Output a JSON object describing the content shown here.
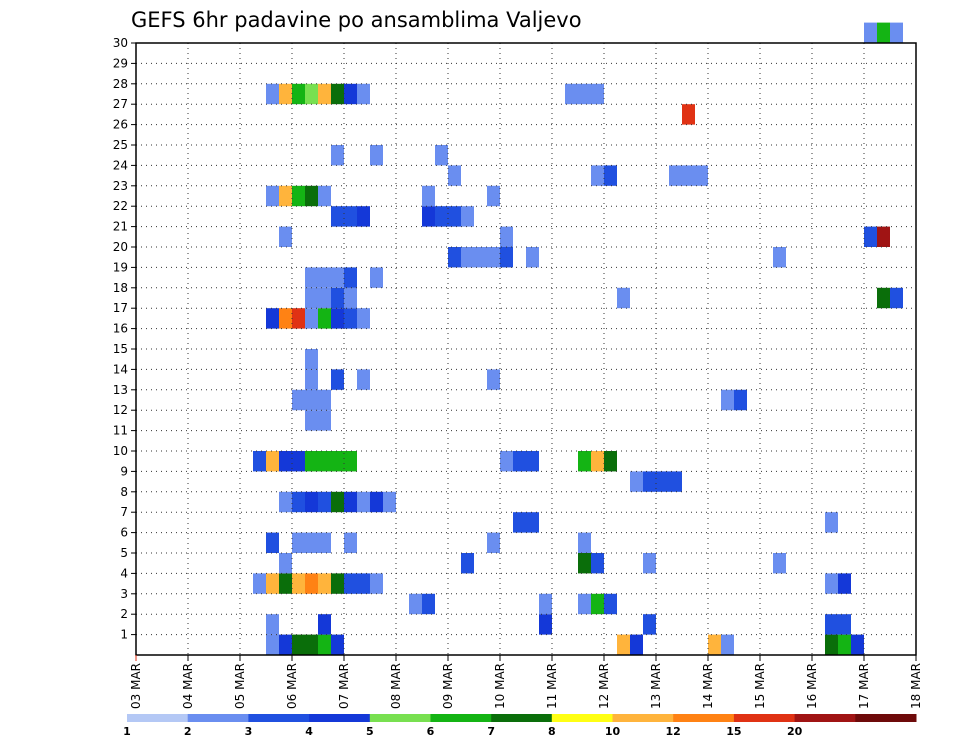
{
  "chart_data": {
    "type": "heatmap",
    "title": "GEFS 6hr padavine po ansamblima Valjevo",
    "xlabel": "",
    "ylabel": "",
    "x_ticks": [
      "03 MAR",
      "04 MAR",
      "05 MAR",
      "06 MAR",
      "07 MAR",
      "08 MAR",
      "09 MAR",
      "10 MAR",
      "11 MAR",
      "12 MAR",
      "13 MAR",
      "14 MAR",
      "15 MAR",
      "16 MAR",
      "17 MAR",
      "18 MAR"
    ],
    "y_ticks": [
      "1",
      "2",
      "3",
      "4",
      "5",
      "6",
      "7",
      "8",
      "9",
      "10",
      "11",
      "12",
      "13",
      "14",
      "15",
      "16",
      "17",
      "18",
      "19",
      "20",
      "21",
      "22",
      "23",
      "24",
      "25",
      "26",
      "27",
      "28",
      "29",
      "30"
    ],
    "xlim": [
      0,
      60
    ],
    "ylim": [
      0,
      30
    ],
    "grid": true,
    "colorbar": {
      "labels": [
        "1",
        "2",
        "3",
        "4",
        "5",
        "6",
        "7",
        "8",
        "10",
        "12",
        "15",
        "20"
      ],
      "colors": [
        "#b4c8f5",
        "#6a8ef0",
        "#2050e0",
        "#1438d8",
        "#78e050",
        "#14b414",
        "#0a6e0a",
        "#ffff14",
        "#ffb43c",
        "#ff8214",
        "#e03214",
        "#a01414",
        "#6e0a0a"
      ]
    },
    "cells": [
      {
        "member": 0,
        "t": [
          [
            10,
            10,
            1
          ],
          [
            11,
            11,
            3
          ],
          [
            12,
            13,
            6
          ],
          [
            14,
            14,
            5
          ],
          [
            15,
            15,
            3
          ],
          [
            37,
            37,
            8
          ],
          [
            38,
            38,
            3
          ],
          [
            44,
            44,
            8
          ],
          [
            45,
            45,
            1
          ],
          [
            53,
            53,
            6
          ],
          [
            54,
            54,
            5
          ],
          [
            55,
            55,
            3
          ]
        ]
      },
      {
        "member": 1,
        "t": [
          [
            10,
            10,
            1
          ],
          [
            14,
            14,
            3
          ],
          [
            31,
            31,
            3
          ],
          [
            39,
            39,
            2
          ],
          [
            53,
            54,
            2
          ]
        ]
      },
      {
        "member": 2,
        "t": [
          [
            21,
            21,
            1
          ],
          [
            22,
            22,
            2
          ],
          [
            31,
            31,
            1
          ],
          [
            34,
            34,
            1
          ],
          [
            35,
            35,
            5
          ],
          [
            36,
            36,
            2
          ]
        ]
      },
      {
        "member": 3,
        "t": [
          [
            9,
            9,
            1
          ],
          [
            10,
            10,
            8
          ],
          [
            11,
            11,
            6
          ],
          [
            12,
            12,
            8
          ],
          [
            13,
            13,
            9
          ],
          [
            14,
            14,
            8
          ],
          [
            15,
            15,
            6
          ],
          [
            16,
            17,
            2
          ],
          [
            18,
            18,
            1
          ],
          [
            53,
            53,
            1
          ],
          [
            54,
            54,
            3
          ]
        ]
      },
      {
        "member": 4,
        "t": [
          [
            11,
            11,
            1
          ],
          [
            25,
            25,
            2
          ],
          [
            34,
            34,
            6
          ],
          [
            35,
            35,
            2
          ],
          [
            39,
            39,
            1
          ],
          [
            49,
            49,
            1
          ]
        ]
      },
      {
        "member": 5,
        "t": [
          [
            10,
            10,
            2
          ],
          [
            12,
            14,
            1
          ],
          [
            16,
            16,
            1
          ],
          [
            27,
            27,
            1
          ],
          [
            34,
            34,
            1
          ]
        ]
      },
      {
        "member": 6,
        "t": [
          [
            29,
            30,
            2
          ],
          [
            53,
            53,
            1
          ]
        ]
      },
      {
        "member": 7,
        "t": [
          [
            11,
            11,
            1
          ],
          [
            12,
            12,
            2
          ],
          [
            13,
            13,
            3
          ],
          [
            14,
            14,
            2
          ],
          [
            15,
            15,
            6
          ],
          [
            16,
            16,
            3
          ],
          [
            17,
            17,
            1
          ],
          [
            18,
            18,
            3
          ],
          [
            19,
            19,
            1
          ]
        ]
      },
      {
        "member": 8,
        "t": [
          [
            38,
            38,
            1
          ],
          [
            39,
            41,
            2
          ]
        ]
      },
      {
        "member": 9,
        "t": [
          [
            9,
            9,
            2
          ],
          [
            10,
            10,
            8
          ],
          [
            11,
            12,
            3
          ],
          [
            13,
            16,
            5
          ],
          [
            28,
            28,
            1
          ],
          [
            29,
            30,
            2
          ],
          [
            34,
            34,
            5
          ],
          [
            35,
            35,
            8
          ],
          [
            36,
            36,
            6
          ]
        ]
      },
      {
        "member": 11,
        "t": [
          [
            13,
            14,
            1
          ]
        ]
      },
      {
        "member": 12,
        "t": [
          [
            12,
            14,
            1
          ],
          [
            45,
            45,
            1
          ],
          [
            46,
            46,
            2
          ]
        ]
      },
      {
        "member": 13,
        "t": [
          [
            13,
            13,
            1
          ],
          [
            15,
            15,
            2
          ],
          [
            17,
            17,
            1
          ],
          [
            27,
            27,
            1
          ]
        ]
      },
      {
        "member": 14,
        "t": [
          [
            13,
            13,
            1
          ]
        ]
      },
      {
        "member": 16,
        "t": [
          [
            10,
            10,
            3
          ],
          [
            11,
            11,
            9
          ],
          [
            12,
            12,
            10
          ],
          [
            13,
            13,
            1
          ],
          [
            14,
            14,
            5
          ],
          [
            15,
            15,
            3
          ],
          [
            16,
            16,
            2
          ],
          [
            17,
            17,
            1
          ]
        ]
      },
      {
        "member": 17,
        "t": [
          [
            13,
            14,
            1
          ],
          [
            15,
            15,
            2
          ],
          [
            16,
            16,
            1
          ],
          [
            37,
            37,
            1
          ],
          [
            57,
            57,
            6
          ],
          [
            58,
            58,
            2
          ]
        ]
      },
      {
        "member": 18,
        "t": [
          [
            13,
            15,
            1
          ],
          [
            16,
            16,
            2
          ],
          [
            18,
            18,
            1
          ]
        ]
      },
      {
        "member": 19,
        "t": [
          [
            24,
            24,
            2
          ],
          [
            25,
            27,
            1
          ],
          [
            28,
            28,
            2
          ],
          [
            30,
            30,
            1
          ],
          [
            49,
            49,
            1
          ]
        ]
      },
      {
        "member": 20,
        "t": [
          [
            11,
            11,
            1
          ],
          [
            28,
            28,
            1
          ],
          [
            56,
            56,
            2
          ],
          [
            57,
            57,
            11
          ]
        ]
      },
      {
        "member": 21,
        "t": [
          [
            15,
            16,
            2
          ],
          [
            17,
            17,
            3
          ],
          [
            22,
            22,
            3
          ],
          [
            23,
            24,
            2
          ],
          [
            25,
            25,
            1
          ]
        ]
      },
      {
        "member": 22,
        "t": [
          [
            10,
            10,
            1
          ],
          [
            11,
            11,
            8
          ],
          [
            12,
            12,
            5
          ],
          [
            13,
            13,
            6
          ],
          [
            14,
            14,
            1
          ],
          [
            22,
            22,
            1
          ],
          [
            27,
            27,
            1
          ]
        ]
      },
      {
        "member": 23,
        "t": [
          [
            24,
            24,
            1
          ],
          [
            35,
            35,
            1
          ],
          [
            36,
            36,
            2
          ],
          [
            41,
            43,
            1
          ]
        ]
      },
      {
        "member": 24,
        "t": [
          [
            15,
            15,
            1
          ],
          [
            18,
            18,
            1
          ],
          [
            23,
            23,
            1
          ]
        ]
      },
      {
        "member": 26,
        "t": [
          [
            42,
            42,
            10
          ]
        ]
      },
      {
        "member": 27,
        "t": [
          [
            10,
            10,
            1
          ],
          [
            11,
            11,
            8
          ],
          [
            12,
            12,
            5
          ],
          [
            13,
            13,
            4
          ],
          [
            14,
            14,
            8
          ],
          [
            15,
            15,
            6
          ],
          [
            16,
            16,
            3
          ],
          [
            17,
            17,
            1
          ],
          [
            33,
            35,
            1
          ]
        ]
      },
      {
        "member": 30,
        "t": [
          [
            56,
            56,
            1
          ],
          [
            57,
            57,
            5
          ],
          [
            58,
            58,
            1
          ]
        ]
      }
    ]
  }
}
